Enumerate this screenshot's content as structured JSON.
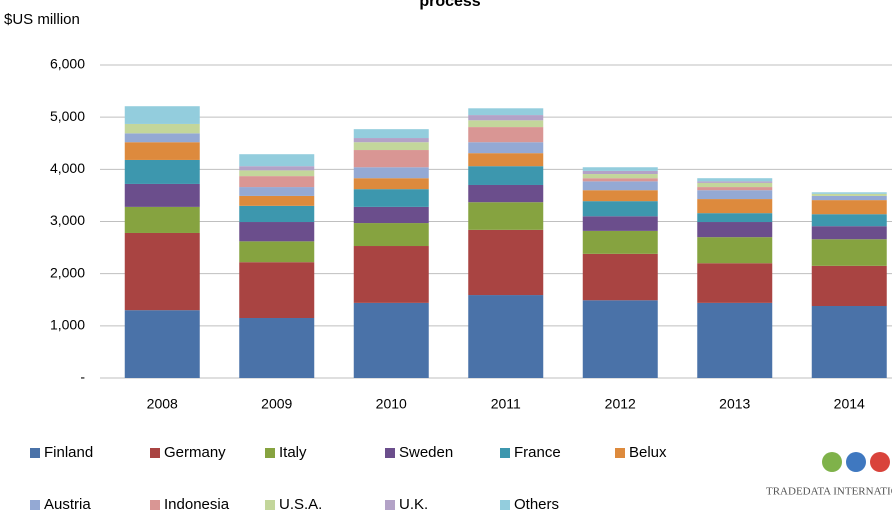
{
  "chart_data": {
    "type": "stacked_bar",
    "title": "process",
    "y_label": "$US million",
    "categories": [
      "2008",
      "2009",
      "2010",
      "2011",
      "2012",
      "2013",
      "2014"
    ],
    "series": [
      {
        "name": "Finland",
        "color": "#4a72a8",
        "values": [
          1300,
          1150,
          1440,
          1590,
          1490,
          1440,
          1380
        ]
      },
      {
        "name": "Germany",
        "color": "#a94442",
        "values": [
          1480,
          1070,
          1090,
          1250,
          890,
          760,
          770
        ]
      },
      {
        "name": "Italy",
        "color": "#86a340",
        "values": [
          500,
          400,
          440,
          530,
          440,
          500,
          510
        ]
      },
      {
        "name": "Sweden",
        "color": "#6b4e8c",
        "values": [
          440,
          370,
          310,
          330,
          280,
          290,
          250
        ]
      },
      {
        "name": "France",
        "color": "#3d97ae",
        "values": [
          460,
          310,
          340,
          360,
          290,
          170,
          230
        ]
      },
      {
        "name": "Belux",
        "color": "#dd8a3d",
        "values": [
          340,
          190,
          210,
          250,
          210,
          270,
          270
        ]
      },
      {
        "name": "Austria",
        "color": "#94a9d4",
        "values": [
          170,
          170,
          210,
          210,
          170,
          170,
          80
        ]
      },
      {
        "name": "Indonesia",
        "color": "#d99694",
        "values": [
          0,
          210,
          330,
          290,
          60,
          60,
          0
        ]
      },
      {
        "name": "U.S.A.",
        "color": "#c3d69b",
        "values": [
          180,
          110,
          150,
          130,
          80,
          80,
          40
        ]
      },
      {
        "name": "U.K.",
        "color": "#b3a2c7",
        "values": [
          0,
          80,
          80,
          100,
          60,
          30,
          0
        ]
      },
      {
        "name": "Others",
        "color": "#93cddd",
        "values": [
          340,
          230,
          170,
          130,
          70,
          60,
          30
        ]
      }
    ],
    "ylim": [
      0,
      6000
    ],
    "yticks": [
      {
        "value": 0,
        "label": "-"
      },
      {
        "value": 1000,
        "label": "1,000"
      },
      {
        "value": 2000,
        "label": "2,000"
      },
      {
        "value": 3000,
        "label": "3,000"
      },
      {
        "value": 4000,
        "label": "4,000"
      },
      {
        "value": 5000,
        "label": "5,000"
      },
      {
        "value": 6000,
        "label": "6,000"
      }
    ],
    "grid": true,
    "logo_text": "TRADEDATA INTERNATIONAL"
  }
}
